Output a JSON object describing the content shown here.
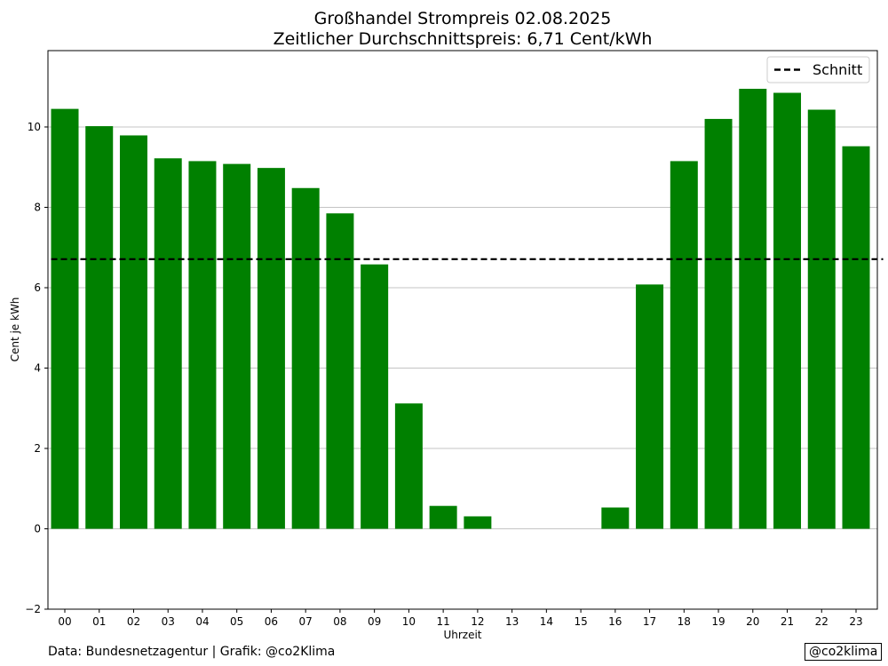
{
  "chart_data": {
    "type": "bar",
    "title": "Großhandel Strompreis 02.08.2025",
    "subtitle": "Zeitlicher Durchschnittspreis: 6,71 Cent/kWh",
    "xlabel": "Uhrzeit",
    "ylabel": "Cent je kWh",
    "categories": [
      "00",
      "01",
      "02",
      "03",
      "04",
      "05",
      "06",
      "07",
      "08",
      "09",
      "10",
      "11",
      "12",
      "13",
      "14",
      "15",
      "16",
      "17",
      "18",
      "19",
      "20",
      "21",
      "22",
      "23"
    ],
    "values": [
      10.45,
      10.02,
      9.79,
      9.22,
      9.15,
      9.08,
      8.98,
      8.48,
      7.85,
      6.58,
      3.12,
      0.57,
      0.31,
      0,
      0,
      0,
      0.53,
      6.08,
      9.15,
      10.2,
      10.95,
      10.85,
      10.43,
      9.52
    ],
    "ylim": [
      -2,
      11.9
    ],
    "yticks": [
      -2,
      0,
      2,
      4,
      6,
      8,
      10
    ],
    "grid": true,
    "bar_color": "#008000",
    "average": {
      "value": 6.71,
      "label": "Schnitt",
      "style": "dashed",
      "color": "#000000"
    },
    "legend": "top-right"
  },
  "footer": {
    "source": "Data: Bundesnetzagentur | Grafik: @co2Klima",
    "watermark": "@co2klima"
  }
}
